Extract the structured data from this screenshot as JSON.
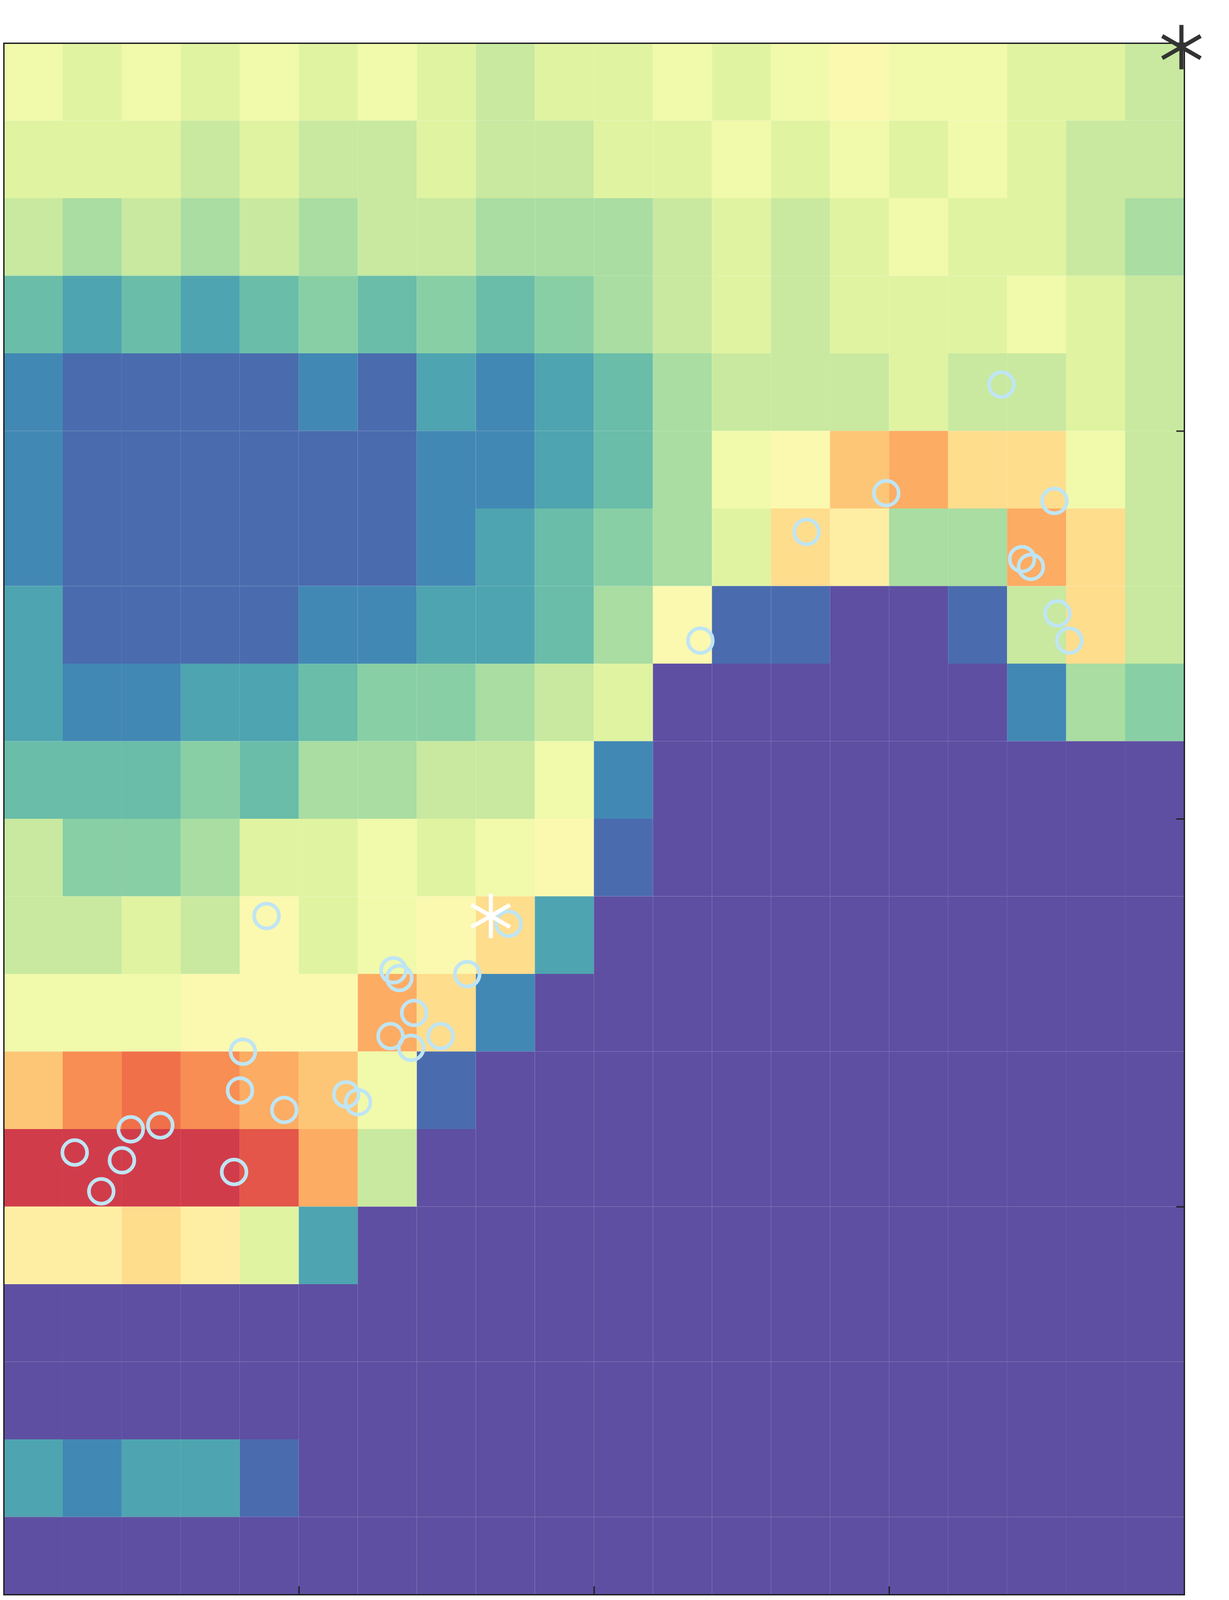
{
  "chart_data": {
    "type": "heatmap",
    "xlim": [
      0,
      4
    ],
    "xticks": [
      1,
      2,
      3
    ],
    "ylim": [
      0,
      4
    ],
    "yticks": [
      1,
      2,
      3
    ],
    "tick_labels": false,
    "color_range": [
      0,
      1
    ],
    "cells": {
      "x_edges": [
        0,
        0.2,
        0.4,
        0.6,
        0.8,
        1,
        1.2,
        1.4,
        1.6,
        1.8,
        2,
        2.2,
        2.4,
        2.6,
        2.8,
        3,
        3.2,
        3.4,
        3.6,
        3.8,
        4
      ],
      "y_edges": [
        4,
        3.8,
        3.6,
        3.4,
        3.2,
        3,
        2.8,
        2.6,
        2.4,
        2.2,
        2,
        1.8,
        1.6,
        1.4,
        1.2,
        1,
        0.8,
        0.6,
        0.4,
        0.2,
        0
      ],
      "values": [
        [
          0.45,
          0.4,
          0.45,
          0.4,
          0.45,
          0.4,
          0.45,
          0.4,
          0.35,
          0.4,
          0.4,
          0.45,
          0.4,
          0.45,
          0.5,
          0.45,
          0.45,
          0.4,
          0.4,
          0.35
        ],
        [
          0.4,
          0.4,
          0.4,
          0.35,
          0.4,
          0.35,
          0.35,
          0.4,
          0.35,
          0.35,
          0.4,
          0.4,
          0.45,
          0.4,
          0.45,
          0.4,
          0.45,
          0.4,
          0.35,
          0.35
        ],
        [
          0.35,
          0.3,
          0.35,
          0.3,
          0.35,
          0.3,
          0.35,
          0.35,
          0.3,
          0.3,
          0.3,
          0.35,
          0.4,
          0.35,
          0.4,
          0.45,
          0.4,
          0.4,
          0.35,
          0.3
        ],
        [
          0.2,
          0.15,
          0.2,
          0.15,
          0.2,
          0.25,
          0.2,
          0.25,
          0.2,
          0.25,
          0.3,
          0.35,
          0.4,
          0.35,
          0.4,
          0.4,
          0.4,
          0.45,
          0.4,
          0.35
        ],
        [
          0.1,
          0.05,
          0.05,
          0.05,
          0.05,
          0.1,
          0.05,
          0.15,
          0.1,
          0.15,
          0.2,
          0.3,
          0.35,
          0.35,
          0.35,
          0.4,
          0.35,
          0.35,
          0.4,
          0.35
        ],
        [
          0.1,
          0.05,
          0.05,
          0.05,
          0.05,
          0.05,
          0.05,
          0.1,
          0.1,
          0.15,
          0.2,
          0.3,
          0.45,
          0.5,
          0.65,
          0.7,
          0.6,
          0.6,
          0.45,
          0.35
        ],
        [
          0.1,
          0.05,
          0.05,
          0.05,
          0.05,
          0.05,
          0.05,
          0.1,
          0.15,
          0.2,
          0.25,
          0.3,
          0.4,
          0.6,
          0.55,
          0.3,
          0.3,
          0.7,
          0.6,
          0.35
        ],
        [
          0.15,
          0.05,
          0.05,
          0.05,
          0.05,
          0.1,
          0.1,
          0.15,
          0.15,
          0.2,
          0.3,
          0.5,
          0.05,
          0.05,
          0,
          0,
          0.05,
          0.35,
          0.6,
          0.35
        ],
        [
          0.15,
          0.1,
          0.1,
          0.15,
          0.15,
          0.2,
          0.25,
          0.25,
          0.3,
          0.35,
          0.4,
          0,
          0,
          0,
          0,
          0,
          0,
          0.1,
          0.3,
          0.25
        ],
        [
          0.2,
          0.2,
          0.2,
          0.25,
          0.2,
          0.3,
          0.3,
          0.35,
          0.35,
          0.45,
          0.1,
          0,
          0,
          0,
          0,
          0,
          0,
          0,
          0,
          0
        ],
        [
          0.35,
          0.25,
          0.25,
          0.3,
          0.4,
          0.4,
          0.45,
          0.4,
          0.45,
          0.5,
          0.05,
          0,
          0,
          0,
          0,
          0,
          0,
          0,
          0,
          0
        ],
        [
          0.35,
          0.35,
          0.4,
          0.35,
          0.5,
          0.4,
          0.45,
          0.5,
          0.6,
          0.15,
          0,
          0,
          0,
          0,
          0,
          0,
          0,
          0,
          0,
          0
        ],
        [
          0.45,
          0.45,
          0.45,
          0.5,
          0.5,
          0.5,
          0.7,
          0.6,
          0.1,
          0,
          0,
          0,
          0,
          0,
          0,
          0,
          0,
          0,
          0,
          0
        ],
        [
          0.65,
          0.75,
          0.8,
          0.75,
          0.7,
          0.65,
          0.45,
          0.05,
          0,
          0,
          0,
          0,
          0,
          0,
          0,
          0,
          0,
          0,
          0,
          0
        ],
        [
          0.9,
          0.9,
          0.9,
          0.9,
          0.85,
          0.7,
          0.35,
          0,
          0,
          0,
          0,
          0,
          0,
          0,
          0,
          0,
          0,
          0,
          0,
          0
        ],
        [
          0.55,
          0.55,
          0.6,
          0.55,
          0.4,
          0.15,
          0,
          0,
          0,
          0,
          0,
          0,
          0,
          0,
          0,
          0,
          0,
          0,
          0,
          0
        ],
        [
          0,
          0,
          0,
          0,
          0,
          0,
          0,
          0,
          0,
          0,
          0,
          0,
          0,
          0,
          0,
          0,
          0,
          0,
          0,
          0
        ],
        [
          0,
          0,
          0,
          0,
          0,
          0,
          0,
          0,
          0,
          0,
          0,
          0,
          0,
          0,
          0,
          0,
          0,
          0,
          0,
          0
        ],
        [
          0.15,
          0.1,
          0.15,
          0.15,
          0.05,
          0,
          0,
          0,
          0,
          0,
          0,
          0,
          0,
          0,
          0,
          0,
          0,
          0,
          0,
          0
        ],
        [
          0,
          0,
          0,
          0,
          0,
          0,
          0,
          0,
          0,
          0,
          0,
          0,
          0,
          0,
          0,
          0,
          0,
          0,
          0,
          0
        ]
      ]
    },
    "points": [
      {
        "marker": "circle",
        "color": "#bfe5f4",
        "x": [
          3.38,
          2.99,
          2.72,
          3.56,
          3.45,
          3.48,
          3.57,
          3.61,
          2.36,
          0.89,
          1.71,
          1.57,
          1.32,
          1.34,
          1.39,
          1.31,
          1.48,
          1.38,
          0.81,
          0.8,
          0.95,
          1.16,
          1.2,
          0.53,
          0.43,
          0.24,
          0.4,
          0.33,
          0.78
        ],
        "y": [
          3.12,
          2.84,
          2.74,
          2.82,
          2.67,
          2.65,
          2.53,
          2.46,
          2.46,
          1.75,
          1.73,
          1.6,
          1.61,
          1.59,
          1.5,
          1.44,
          1.44,
          1.41,
          1.4,
          1.3,
          1.25,
          1.29,
          1.27,
          1.21,
          1.2,
          1.14,
          1.12,
          1.04,
          1.09
        ]
      },
      {
        "marker": "asterisk",
        "color": "#ffffff",
        "x": [
          1.65
        ],
        "y": [
          1.75
        ]
      },
      {
        "marker": "asterisk",
        "color": "#333333",
        "x": [
          3.99
        ],
        "y": [
          3.99
        ]
      }
    ]
  }
}
